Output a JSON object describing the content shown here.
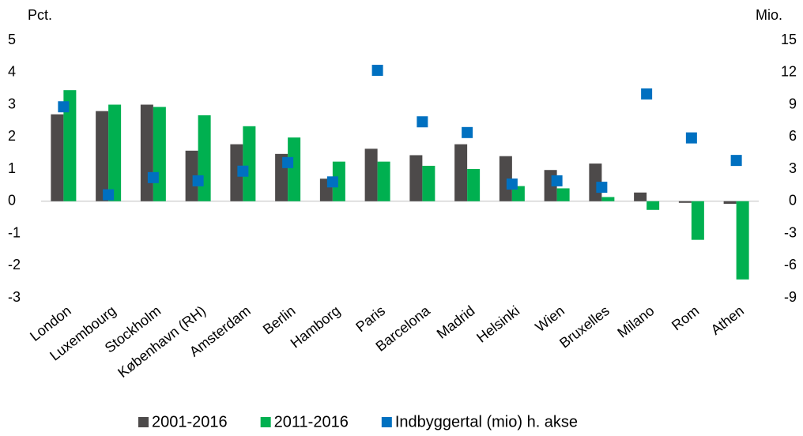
{
  "chart_data": {
    "type": "bar",
    "y_label": "Pct.",
    "y2_label": "Mio.",
    "categories": [
      "London",
      "Luxembourg",
      "Stockholm",
      "København (RH)",
      "Amsterdam",
      "Berlin",
      "Hamborg",
      "Paris",
      "Barcelona",
      "Madrid",
      "Helsinki",
      "Wien",
      "Bruxelles",
      "Milano",
      "Rom",
      "Athen"
    ],
    "series": [
      {
        "name": "2001-2016",
        "color": "#4d4a4a",
        "values": [
          2.7,
          2.8,
          3.0,
          1.57,
          1.77,
          1.47,
          0.7,
          1.63,
          1.43,
          1.77,
          1.4,
          0.97,
          1.17,
          0.27,
          -0.05,
          -0.08
        ]
      },
      {
        "name": "2011-2016",
        "color": "#00b050",
        "values": [
          3.45,
          3.0,
          2.93,
          2.67,
          2.33,
          1.98,
          1.23,
          1.23,
          1.1,
          1.0,
          0.47,
          0.4,
          0.13,
          -0.27,
          -1.2,
          -2.43
        ]
      },
      {
        "name": "Indbyggertal (mio) h. akse",
        "color": "#0070c0",
        "type": "scatter",
        "axis": "y2",
        "values": [
          8.8,
          0.6,
          2.2,
          1.9,
          2.8,
          3.6,
          1.8,
          12.2,
          7.4,
          6.4,
          1.6,
          1.9,
          1.3,
          10.0,
          5.9,
          3.8
        ]
      }
    ],
    "ylim": [
      -3,
      5
    ],
    "yticks": [
      -3,
      -2,
      -1,
      0,
      1,
      2,
      3,
      4,
      5
    ],
    "y2lim": [
      -9,
      15
    ],
    "y2ticks": [
      -9,
      -6,
      -3,
      0,
      3,
      6,
      9,
      12,
      15
    ],
    "grid": false,
    "legend": "bottom"
  }
}
